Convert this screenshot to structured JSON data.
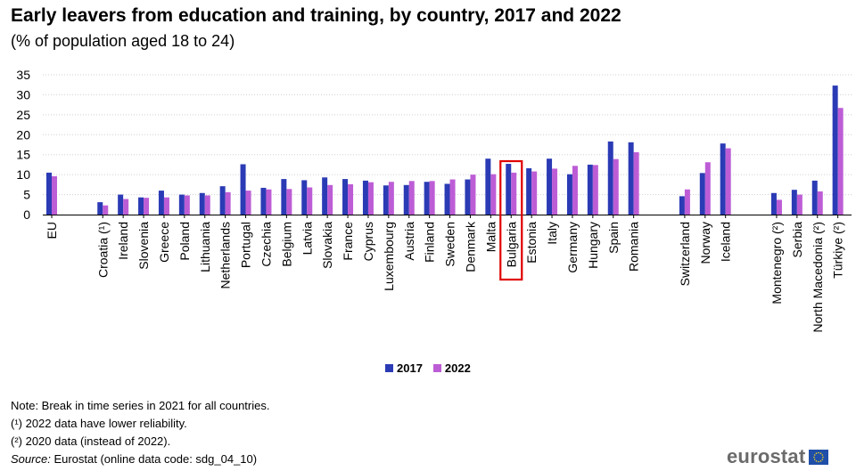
{
  "title": "Early leavers from education and training, by country, 2017 and 2022",
  "subtitle": "(% of population aged 18 to 24)",
  "colors": {
    "s2017": "#2b3bb5",
    "s2022": "#bd5dd6",
    "highlight": "#e00000",
    "grid": "#d0d0d0"
  },
  "chart_data": {
    "type": "bar",
    "ylim": [
      0,
      35
    ],
    "yticks": [
      0,
      5,
      10,
      15,
      20,
      25,
      30,
      35
    ],
    "grid": true,
    "legend_position": "bottom-center",
    "highlighted_category": "Bulgaria",
    "groups": [
      {
        "categories": [
          "EU"
        ]
      },
      {
        "categories": [
          "Croatia (¹)",
          "Ireland",
          "Slovenia",
          "Greece",
          "Poland",
          "Lithuania",
          "Netherlands",
          "Portugal",
          "Czechia",
          "Belgium",
          "Latvia",
          "Slovakia",
          "France",
          "Cyprus",
          "Luxembourg",
          "Austria",
          "Finland",
          "Sweden",
          "Denmark",
          "Malta",
          "Bulgaria",
          "Estonia",
          "Italy",
          "Germany",
          "Hungary",
          "Spain",
          "Romania"
        ]
      },
      {
        "categories": [
          "Switzerland",
          "Norway",
          "Iceland"
        ]
      },
      {
        "categories": [
          "Montenegro (²)",
          "Serbia",
          "North Macedonia (²)",
          "Türkiye (²)"
        ]
      }
    ],
    "series": [
      {
        "name": "2017",
        "values": [
          10.5,
          3.1,
          5.0,
          4.3,
          6.0,
          5.0,
          5.4,
          7.1,
          12.6,
          6.7,
          8.9,
          8.6,
          9.3,
          8.9,
          8.5,
          7.3,
          7.4,
          8.2,
          7.7,
          8.8,
          14.0,
          12.7,
          11.6,
          14.0,
          10.1,
          12.5,
          18.3,
          18.1,
          4.6,
          10.4,
          17.8,
          5.4,
          6.2,
          8.5,
          32.3
        ]
      },
      {
        "name": "2022",
        "values": [
          9.6,
          2.3,
          3.9,
          4.2,
          4.3,
          4.8,
          4.8,
          5.6,
          6.0,
          6.3,
          6.4,
          6.8,
          7.4,
          7.6,
          8.1,
          8.2,
          8.4,
          8.4,
          8.8,
          10.0,
          10.1,
          10.5,
          10.8,
          11.5,
          12.2,
          12.4,
          13.9,
          15.6,
          6.3,
          13.1,
          16.6,
          3.7,
          5.0,
          5.8,
          26.7
        ]
      }
    ]
  },
  "legend": {
    "label_2017": "2017",
    "label_2022": "2022"
  },
  "notes": {
    "note1": "Note: Break in time series in 2021 for all countries.",
    "note2": "(¹) 2022 data have lower reliability.",
    "note3": "(²) 2020 data (instead of 2022).",
    "source_label": "Source:",
    "source_text": "Eurostat (online data code: sdg_04_10)"
  },
  "logo": {
    "text": "eurostat",
    "icon": "eu-flag-icon"
  }
}
